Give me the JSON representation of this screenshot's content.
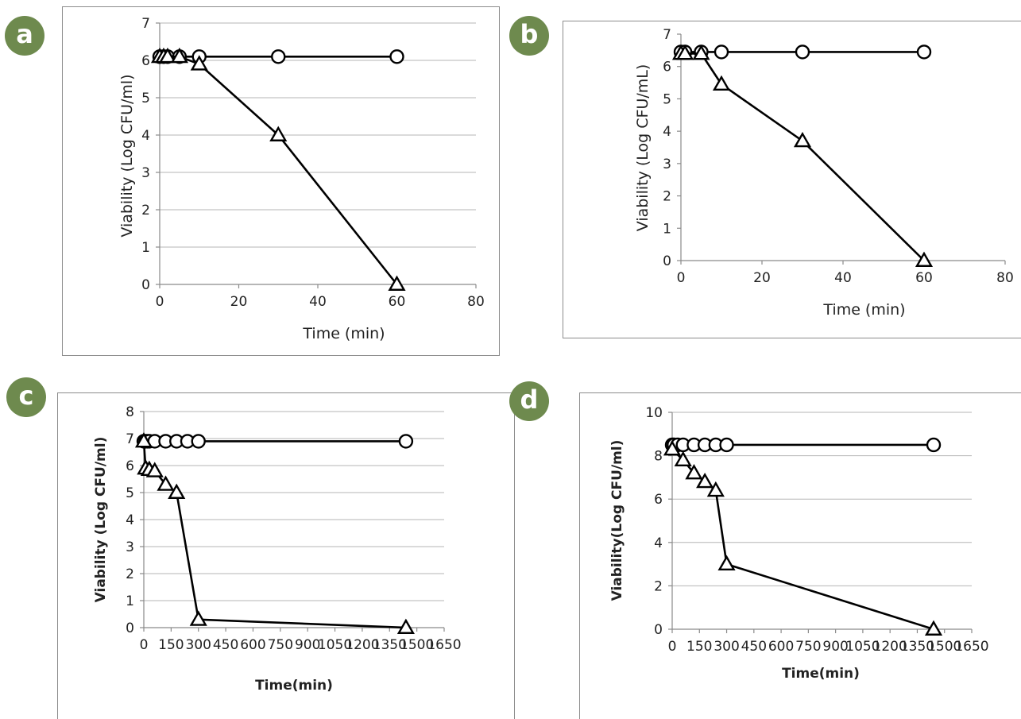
{
  "panels": {
    "a": {
      "letter": "a"
    },
    "b": {
      "letter": "b"
    },
    "c": {
      "letter": "c"
    },
    "d": {
      "letter": "d"
    }
  },
  "chart_data": [
    {
      "id": "a",
      "type": "line",
      "xlabel": "Time (min)",
      "ylabel": "Viability (Log CFU/ml)",
      "xlim": [
        0,
        80
      ],
      "ylim": [
        0,
        7
      ],
      "xticks": [
        0,
        20,
        40,
        60,
        80
      ],
      "yticks": [
        0,
        1,
        2,
        3,
        4,
        5,
        6,
        7
      ],
      "grid": true,
      "series": [
        {
          "marker": "circle",
          "x": [
            0,
            1,
            2,
            5,
            10,
            30,
            60
          ],
          "y": [
            6.1,
            6.1,
            6.1,
            6.1,
            6.1,
            6.1,
            6.1
          ]
        },
        {
          "marker": "triangle",
          "x": [
            0,
            1,
            2,
            5,
            10,
            30,
            60
          ],
          "y": [
            6.1,
            6.1,
            6.1,
            6.1,
            5.9,
            4.0,
            0.0
          ]
        }
      ]
    },
    {
      "id": "b",
      "type": "line",
      "xlabel": "Time (min)",
      "ylabel": "Viability (Log CFU/mL)",
      "xlim": [
        0,
        80
      ],
      "ylim": [
        0,
        7
      ],
      "xticks": [
        0,
        20,
        40,
        60,
        80
      ],
      "yticks": [
        0,
        1,
        2,
        3,
        4,
        5,
        6,
        7
      ],
      "grid": false,
      "series": [
        {
          "marker": "circle",
          "x": [
            0,
            1,
            5,
            10,
            30,
            60
          ],
          "y": [
            6.45,
            6.45,
            6.45,
            6.45,
            6.45,
            6.45
          ]
        },
        {
          "marker": "triangle",
          "x": [
            0,
            1,
            5,
            10,
            30,
            60
          ],
          "y": [
            6.4,
            6.4,
            6.4,
            5.45,
            3.7,
            0.0
          ]
        }
      ]
    },
    {
      "id": "c",
      "type": "line",
      "xlabel": "Time(min)",
      "ylabel": "Viability (Log CFU/ml)",
      "xlim": [
        0,
        1650
      ],
      "ylim": [
        0,
        8
      ],
      "xticks": [
        0,
        150,
        300,
        450,
        600,
        750,
        900,
        1050,
        1200,
        1350,
        1500,
        1650
      ],
      "yticks": [
        0,
        1,
        2,
        3,
        4,
        5,
        6,
        7,
        8
      ],
      "grid": true,
      "series": [
        {
          "marker": "circle",
          "x": [
            0,
            10,
            20,
            30,
            60,
            120,
            180,
            240,
            300,
            1440
          ],
          "y": [
            6.9,
            6.9,
            6.9,
            6.9,
            6.9,
            6.9,
            6.9,
            6.9,
            6.9,
            6.9
          ]
        },
        {
          "marker": "triangle",
          "x": [
            0,
            10,
            30,
            60,
            120,
            180,
            300,
            1440
          ],
          "y": [
            6.9,
            5.9,
            5.85,
            5.8,
            5.3,
            5.0,
            0.3,
            0.0
          ]
        }
      ]
    },
    {
      "id": "d",
      "type": "line",
      "xlabel": "Time(min)",
      "ylabel": "Viability(Log CFU/ml)",
      "xlim": [
        0,
        1650
      ],
      "ylim": [
        0,
        10
      ],
      "xticks": [
        0,
        150,
        300,
        450,
        600,
        750,
        900,
        1050,
        1200,
        1350,
        1500,
        1650
      ],
      "yticks": [
        0,
        2,
        4,
        6,
        8,
        10
      ],
      "grid": true,
      "series": [
        {
          "marker": "circle",
          "x": [
            0,
            10,
            30,
            60,
            120,
            180,
            240,
            300,
            1440
          ],
          "y": [
            8.5,
            8.5,
            8.5,
            8.5,
            8.5,
            8.5,
            8.5,
            8.5,
            8.5
          ]
        },
        {
          "marker": "triangle",
          "x": [
            0,
            60,
            120,
            180,
            240,
            300,
            1440
          ],
          "y": [
            8.3,
            7.8,
            7.2,
            6.8,
            6.4,
            3.0,
            0.0
          ]
        }
      ]
    }
  ]
}
